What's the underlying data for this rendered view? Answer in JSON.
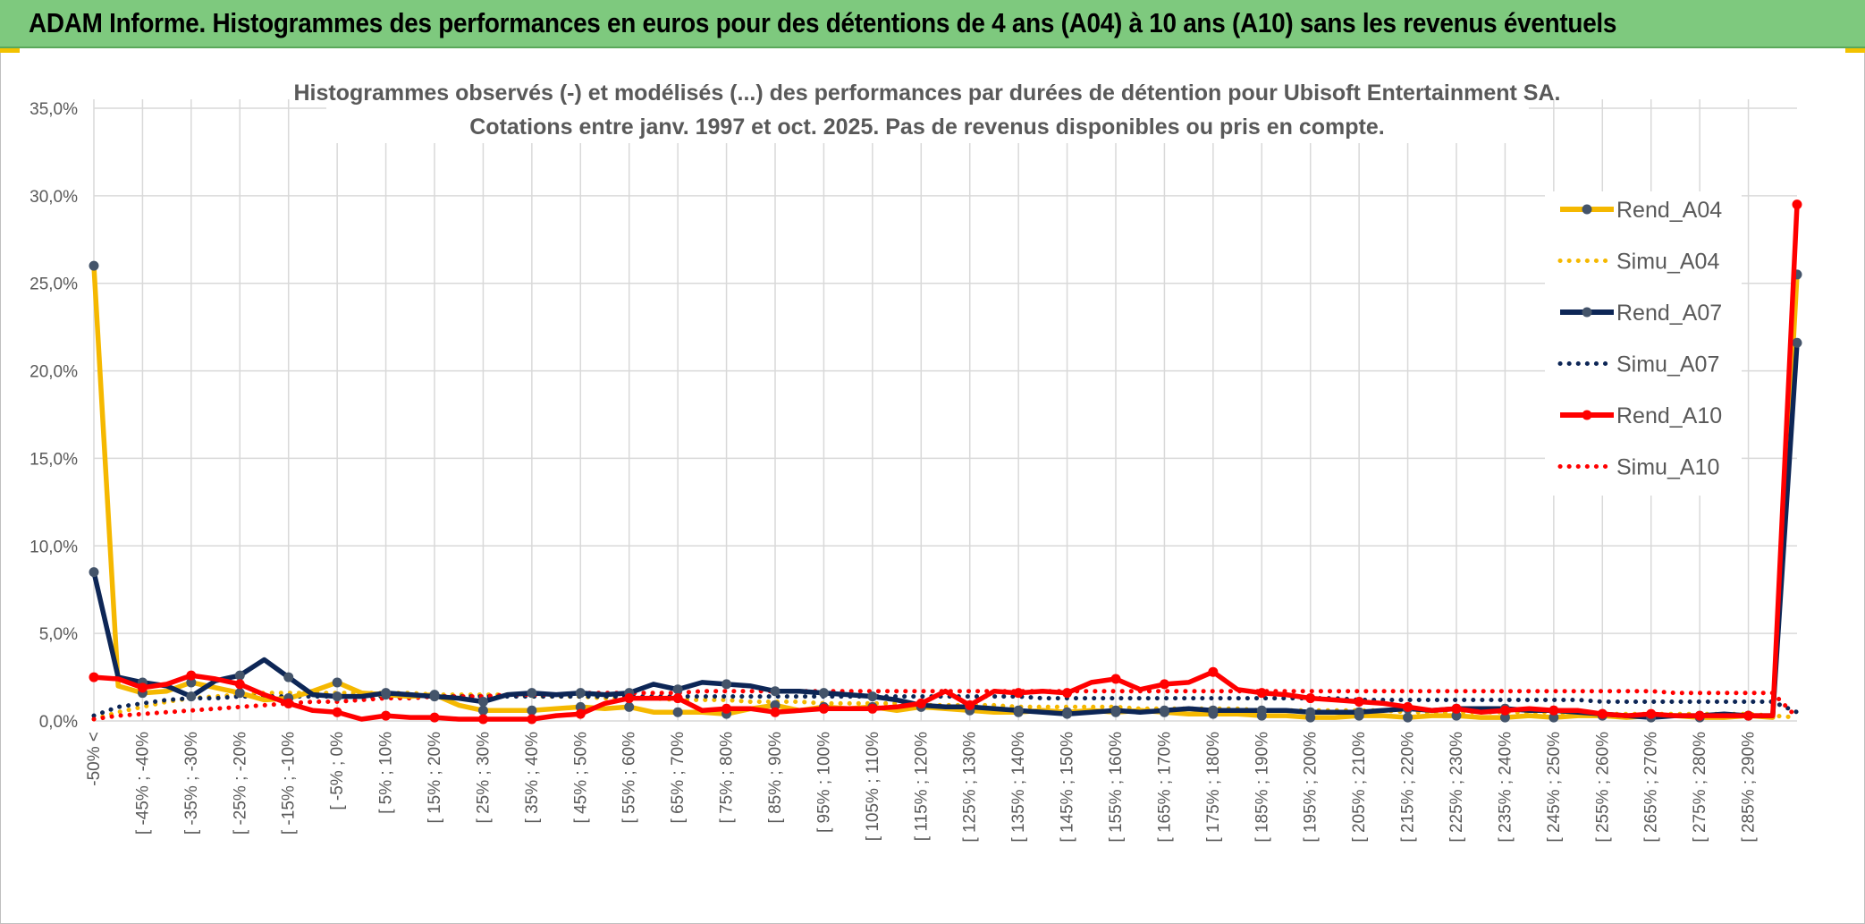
{
  "header": {
    "title": "ADAM Informe. Histogrammes des performances en euros pour des détentions de 4 ans (A04) à 10 ans (A10) sans les revenus éventuels"
  },
  "chart_data": {
    "type": "line",
    "title": "Histogrammes observés (-) et modélisés (...) des performances par durées de détention pour Ubisoft Entertainment SA.",
    "subtitle": "Cotations entre janv. 1997 et oct. 2025. Pas de revenus disponibles ou pris en compte.",
    "xlabel": "",
    "ylabel": "",
    "ylim": [
      0,
      35
    ],
    "yticks": [
      0,
      5,
      10,
      15,
      20,
      25,
      30,
      35
    ],
    "ytick_labels": [
      "0,0%",
      "5,0%",
      "10,0%",
      "15,0%",
      "20,0%",
      "25,0%",
      "30,0%",
      "35,0%"
    ],
    "grid": true,
    "legend_position": "right",
    "x_tick_labels": [
      "-50% <",
      "[ -45% ; -40%",
      "[ -35% ; -30%",
      "[ -25% ; -20%",
      "[ -15% ; -10%",
      "[ -5% ; 0%",
      "[ 5% ; 10%",
      "[ 15% ; 20%",
      "[ 25% ; 30%",
      "[ 35% ; 40%",
      "[ 45% ; 50%",
      "[ 55% ; 60%",
      "[ 65% ; 70%",
      "[ 75% ; 80%",
      "[ 85% ; 90%",
      "[ 95% ; 100%",
      "[ 105% ; 110%",
      "[ 115% ; 120%",
      "[ 125% ; 130%",
      "[ 135% ; 140%",
      "[ 145% ; 150%",
      "[ 155% ; 160%",
      "[ 165% ; 170%",
      "[ 175% ; 180%",
      "[ 185% ; 190%",
      "[ 195% ; 200%",
      "[ 205% ; 210%",
      "[ 215% ; 220%",
      "[ 225% ; 230%",
      "[ 235% ; 240%",
      "[ 245% ; 250%",
      "[ 255% ; 260%",
      "[ 265% ; 270%",
      "[ 275% ; 280%",
      "[ 285% ; 290%"
    ],
    "series": [
      {
        "name": "Rend_A04",
        "style": "solid",
        "color": "#f5b800",
        "values": [
          26.0,
          2.0,
          1.6,
          1.7,
          2.2,
          1.9,
          1.6,
          1.2,
          1.3,
          1.7,
          2.2,
          1.6,
          1.5,
          1.4,
          1.5,
          0.9,
          0.6,
          0.6,
          0.6,
          0.7,
          0.8,
          0.7,
          0.8,
          0.5,
          0.5,
          0.5,
          0.4,
          0.7,
          0.9,
          0.6,
          0.8,
          0.7,
          0.8,
          0.6,
          0.8,
          0.7,
          0.6,
          0.5,
          0.5,
          0.6,
          0.5,
          0.6,
          0.5,
          0.6,
          0.5,
          0.4,
          0.4,
          0.4,
          0.3,
          0.3,
          0.2,
          0.2,
          0.3,
          0.3,
          0.2,
          0.3,
          0.3,
          0.2,
          0.2,
          0.3,
          0.2,
          0.3,
          0.3,
          0.2,
          0.3,
          0.3,
          0.2,
          0.2,
          0.3,
          0.2,
          25.5
        ]
      },
      {
        "name": "Simu_A04",
        "style": "dotted",
        "color": "#f5b800",
        "values": [
          0.1,
          0.5,
          0.8,
          1.1,
          1.3,
          1.4,
          1.5,
          1.6,
          1.6,
          1.6,
          1.6,
          1.6,
          1.6,
          1.6,
          1.5,
          1.5,
          1.5,
          1.5,
          1.4,
          1.4,
          1.4,
          1.3,
          1.3,
          1.3,
          1.2,
          1.2,
          1.2,
          1.1,
          1.1,
          1.1,
          1.0,
          1.0,
          1.0,
          1.0,
          0.9,
          0.9,
          0.9,
          0.9,
          0.8,
          0.8,
          0.8,
          0.8,
          0.8,
          0.7,
          0.7,
          0.7,
          0.7,
          0.7,
          0.6,
          0.6,
          0.6,
          0.6,
          0.6,
          0.6,
          0.5,
          0.5,
          0.5,
          0.5,
          0.5,
          0.5,
          0.5,
          0.4,
          0.4,
          0.4,
          0.4,
          0.4,
          0.4,
          0.4,
          0.4,
          0.3,
          0.2
        ]
      },
      {
        "name": "Rend_A07",
        "style": "solid",
        "color": "#0d2656",
        "values": [
          8.5,
          2.5,
          2.2,
          2.0,
          1.4,
          2.3,
          2.6,
          3.5,
          2.5,
          1.5,
          1.4,
          1.4,
          1.6,
          1.5,
          1.4,
          1.3,
          1.1,
          1.5,
          1.6,
          1.5,
          1.6,
          1.5,
          1.6,
          2.1,
          1.8,
          2.2,
          2.1,
          2.0,
          1.7,
          1.7,
          1.6,
          1.5,
          1.4,
          1.2,
          0.9,
          0.8,
          0.8,
          0.7,
          0.6,
          0.5,
          0.4,
          0.5,
          0.6,
          0.5,
          0.6,
          0.7,
          0.6,
          0.6,
          0.6,
          0.6,
          0.5,
          0.5,
          0.5,
          0.6,
          0.7,
          0.6,
          0.7,
          0.7,
          0.7,
          0.6,
          0.6,
          0.5,
          0.4,
          0.3,
          0.2,
          0.3,
          0.3,
          0.4,
          0.3,
          0.3,
          21.6
        ]
      },
      {
        "name": "Simu_A07",
        "style": "dotted",
        "color": "#0d2656",
        "values": [
          0.3,
          0.8,
          1.0,
          1.2,
          1.3,
          1.3,
          1.4,
          1.4,
          1.4,
          1.4,
          1.4,
          1.4,
          1.4,
          1.4,
          1.4,
          1.4,
          1.4,
          1.4,
          1.4,
          1.4,
          1.4,
          1.4,
          1.4,
          1.4,
          1.4,
          1.4,
          1.4,
          1.4,
          1.4,
          1.4,
          1.4,
          1.4,
          1.4,
          1.4,
          1.4,
          1.4,
          1.4,
          1.4,
          1.4,
          1.3,
          1.3,
          1.3,
          1.3,
          1.3,
          1.3,
          1.3,
          1.3,
          1.3,
          1.3,
          1.3,
          1.3,
          1.3,
          1.2,
          1.2,
          1.2,
          1.2,
          1.2,
          1.2,
          1.2,
          1.2,
          1.2,
          1.2,
          1.1,
          1.1,
          1.1,
          1.1,
          1.1,
          1.1,
          1.1,
          1.1,
          0.5
        ]
      },
      {
        "name": "Rend_A10",
        "style": "solid",
        "color": "#ff0000",
        "values": [
          2.5,
          2.4,
          1.9,
          2.1,
          2.6,
          2.4,
          2.1,
          1.5,
          1.0,
          0.6,
          0.5,
          0.1,
          0.3,
          0.2,
          0.2,
          0.1,
          0.1,
          0.1,
          0.1,
          0.3,
          0.4,
          1.0,
          1.3,
          1.3,
          1.3,
          0.6,
          0.7,
          0.7,
          0.5,
          0.6,
          0.7,
          0.7,
          0.7,
          0.8,
          1.0,
          1.7,
          0.9,
          1.7,
          1.6,
          1.7,
          1.6,
          2.2,
          2.4,
          1.8,
          2.1,
          2.2,
          2.8,
          1.8,
          1.6,
          1.5,
          1.3,
          1.2,
          1.1,
          1.0,
          0.8,
          0.6,
          0.7,
          0.5,
          0.6,
          0.7,
          0.6,
          0.6,
          0.4,
          0.3,
          0.4,
          0.3,
          0.3,
          0.3,
          0.3,
          0.3,
          29.5
        ]
      },
      {
        "name": "Simu_A10",
        "style": "dotted",
        "color": "#ff0000",
        "values": [
          0.1,
          0.3,
          0.4,
          0.5,
          0.6,
          0.7,
          0.8,
          0.9,
          1.0,
          1.1,
          1.1,
          1.2,
          1.3,
          1.3,
          1.4,
          1.4,
          1.4,
          1.5,
          1.5,
          1.5,
          1.6,
          1.6,
          1.6,
          1.6,
          1.6,
          1.7,
          1.7,
          1.7,
          1.7,
          1.7,
          1.7,
          1.7,
          1.7,
          1.7,
          1.7,
          1.7,
          1.7,
          1.7,
          1.7,
          1.7,
          1.7,
          1.7,
          1.7,
          1.7,
          1.7,
          1.7,
          1.7,
          1.7,
          1.7,
          1.7,
          1.7,
          1.7,
          1.7,
          1.7,
          1.7,
          1.7,
          1.7,
          1.7,
          1.7,
          1.7,
          1.7,
          1.7,
          1.7,
          1.7,
          1.7,
          1.6,
          1.6,
          1.6,
          1.6,
          1.6,
          0.2
        ]
      }
    ]
  }
}
